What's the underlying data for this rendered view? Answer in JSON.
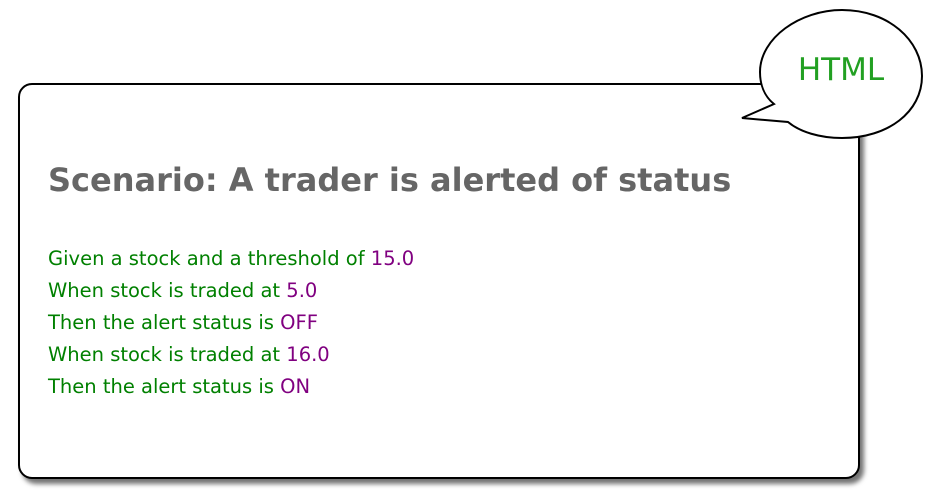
{
  "callout": {
    "label": "HTML",
    "label_color": "#22a022"
  },
  "scenario": {
    "title": "Scenario: A trader is alerted of status",
    "title_color": "#666666",
    "text_color": "#008000",
    "param_color": "#800080",
    "steps": [
      {
        "text": "Given a stock and a threshold of ",
        "param": "15.0"
      },
      {
        "text": "When stock is traded at ",
        "param": "5.0"
      },
      {
        "text": "Then the alert status is ",
        "param": "OFF"
      },
      {
        "text": "When stock is traded at ",
        "param": "16.0"
      },
      {
        "text": "Then the alert status is ",
        "param": "ON"
      }
    ]
  }
}
